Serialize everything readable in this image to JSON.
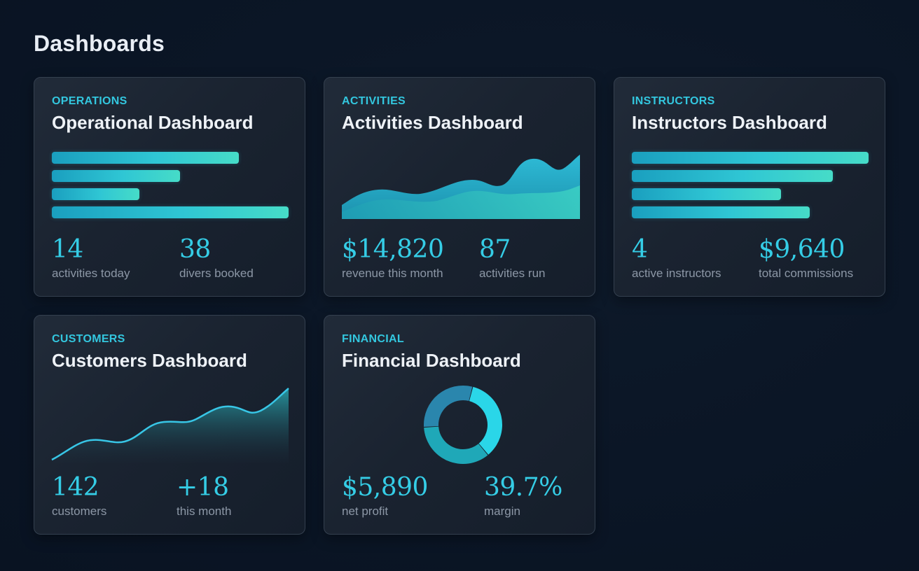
{
  "page": {
    "title": "Dashboards"
  },
  "cards": [
    {
      "category": "OPERATIONS",
      "title": "Operational Dashboard",
      "viz": "horizontal-bars",
      "bars": [
        0.79,
        0.54,
        0.37,
        1.0
      ],
      "stats": [
        {
          "value": "14",
          "label": "activities today"
        },
        {
          "value": "38",
          "label": "divers booked"
        }
      ]
    },
    {
      "category": "ACTIVITIES",
      "title": "Activities Dashboard",
      "viz": "area-chart",
      "stats": [
        {
          "value": "$14,820",
          "label": "revenue this month"
        },
        {
          "value": "87",
          "label": "activities run"
        }
      ]
    },
    {
      "category": "INSTRUCTORS",
      "title": "Instructors Dashboard",
      "viz": "horizontal-bars",
      "bars": [
        1.0,
        0.85,
        0.63,
        0.75
      ],
      "stats": [
        {
          "value": "4",
          "label": "active instructors"
        },
        {
          "value": "$9,640",
          "label": "total commissions"
        }
      ]
    },
    {
      "category": "CUSTOMERS",
      "title": "Customers Dashboard",
      "viz": "line-chart",
      "stats": [
        {
          "value": "142",
          "label": "customers"
        },
        {
          "value": "+18",
          "label": "this month"
        }
      ]
    },
    {
      "category": "FINANCIAL",
      "title": "Financial Dashboard",
      "viz": "donut-chart",
      "donut": [
        0.35,
        0.35,
        0.3
      ],
      "stats": [
        {
          "value": "$5,890",
          "label": "net profit"
        },
        {
          "value": "39.7%",
          "label": "margin"
        }
      ]
    }
  ],
  "colors": {
    "accent": "#35cde6",
    "background": "#0b1626",
    "card": "#1c2532",
    "muted_text": "#8c97a6"
  }
}
